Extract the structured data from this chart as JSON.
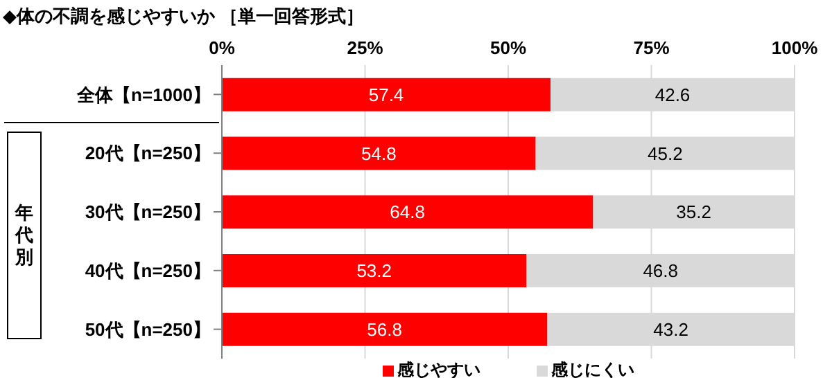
{
  "chart_data": {
    "type": "bar",
    "orientation": "horizontal",
    "stacked": true,
    "title": "◆体の不調を感じやすいか ［単一回答形式］",
    "categories": [
      "全体【n=1000】",
      "20代【n=250】",
      "30代【n=250】",
      "40代【n=250】",
      "50代【n=250】"
    ],
    "series": [
      {
        "name": "感じやすい",
        "color": "#ff0000",
        "values": [
          57.4,
          54.8,
          64.8,
          53.2,
          56.8
        ]
      },
      {
        "name": "感じにくい",
        "color": "#d9d9d9",
        "values": [
          42.6,
          45.2,
          35.2,
          46.8,
          43.2
        ]
      }
    ],
    "xlim": [
      0,
      100
    ],
    "xticks": [
      {
        "value": 0,
        "label": "0%"
      },
      {
        "value": 25,
        "label": "25%"
      },
      {
        "value": 50,
        "label": "50%"
      },
      {
        "value": 75,
        "label": "75%"
      },
      {
        "value": 100,
        "label": "100%"
      }
    ],
    "grid": "x",
    "data_labels": true,
    "legend": "bottom",
    "annotations": [
      "年代別"
    ]
  }
}
